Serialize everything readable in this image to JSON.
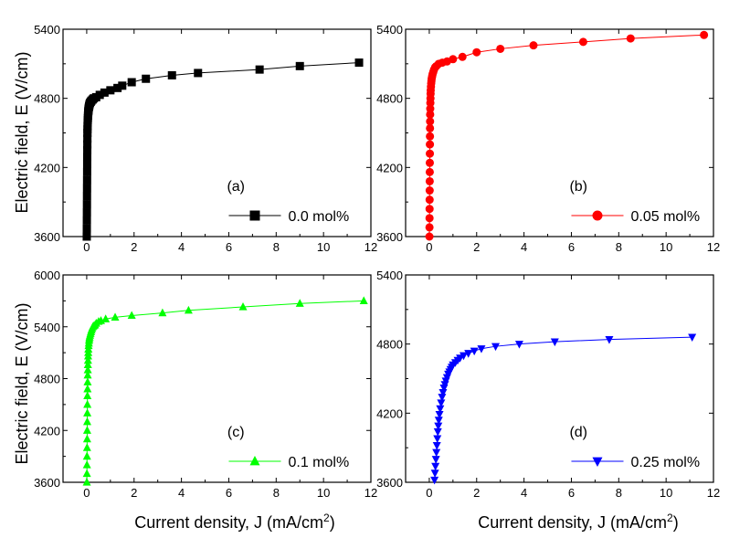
{
  "figure": {
    "ylabel": "Electric field, E (V/cm)",
    "xlabel_main": "Current density, J (mA/cm",
    "xlabel_sup": "2",
    "xlabel_end": ")"
  },
  "chart_data": [
    {
      "type": "scatter",
      "panel_label": "(a)",
      "legend": "0.0 mol%",
      "color": "#000000",
      "marker": "square",
      "xlim": [
        -1,
        12
      ],
      "ylim": [
        3600,
        5400
      ],
      "xticks": [
        0,
        2,
        4,
        6,
        8,
        10,
        12
      ],
      "yticks": [
        3600,
        4200,
        4800,
        5400
      ],
      "series": [
        {
          "name": "0.0 mol%",
          "x": [
            0.002,
            0.004,
            0.006,
            0.008,
            0.01,
            0.012,
            0.014,
            0.016,
            0.018,
            0.02,
            0.022,
            0.024,
            0.026,
            0.028,
            0.03,
            0.033,
            0.036,
            0.04,
            0.045,
            0.05,
            0.055,
            0.06,
            0.065,
            0.07,
            0.075,
            0.08,
            0.09,
            0.1,
            0.11,
            0.12,
            0.14,
            0.17,
            0.2,
            0.25,
            0.3,
            0.4,
            0.55,
            0.75,
            1.0,
            1.3,
            1.5,
            1.9,
            2.5,
            3.6,
            4.7,
            7.3,
            9.0,
            11.5
          ],
          "y": [
            3600,
            3670,
            3740,
            3810,
            3880,
            3950,
            4020,
            4090,
            4160,
            4230,
            4290,
            4350,
            4400,
            4450,
            4500,
            4530,
            4560,
            4590,
            4610,
            4630,
            4650,
            4670,
            4680,
            4690,
            4700,
            4710,
            4720,
            4730,
            4740,
            4750,
            4760,
            4770,
            4780,
            4790,
            4800,
            4810,
            4830,
            4850,
            4870,
            4890,
            4910,
            4940,
            4970,
            5000,
            5020,
            5050,
            5080,
            5110
          ]
        }
      ]
    },
    {
      "type": "scatter",
      "panel_label": "(b)",
      "legend": "0.05 mol%",
      "color": "#ff0000",
      "marker": "circle",
      "xlim": [
        -1,
        12
      ],
      "ylim": [
        3600,
        5400
      ],
      "xticks": [
        0,
        2,
        4,
        6,
        8,
        10,
        12
      ],
      "yticks": [
        3600,
        4200,
        4800,
        5400
      ],
      "series": [
        {
          "name": "0.05 mol%",
          "x": [
            0.005,
            0.008,
            0.01,
            0.012,
            0.014,
            0.016,
            0.018,
            0.02,
            0.022,
            0.024,
            0.026,
            0.028,
            0.03,
            0.033,
            0.036,
            0.04,
            0.045,
            0.05,
            0.055,
            0.06,
            0.07,
            0.08,
            0.09,
            0.1,
            0.12,
            0.14,
            0.17,
            0.2,
            0.25,
            0.3,
            0.4,
            0.55,
            0.75,
            1.0,
            1.4,
            2.0,
            3.0,
            4.4,
            6.5,
            8.5,
            11.6
          ],
          "y": [
            3600,
            3680,
            3760,
            3840,
            3920,
            4000,
            4080,
            4160,
            4240,
            4320,
            4400,
            4470,
            4540,
            4600,
            4660,
            4710,
            4760,
            4800,
            4840,
            4870,
            4900,
            4930,
            4950,
            4970,
            4990,
            5010,
            5030,
            5050,
            5070,
            5080,
            5100,
            5110,
            5120,
            5140,
            5160,
            5200,
            5230,
            5260,
            5290,
            5320,
            5350
          ]
        }
      ]
    },
    {
      "type": "scatter",
      "panel_label": "(c)",
      "legend": "0.1 mol%",
      "color": "#00ff00",
      "marker": "triangle-up",
      "xlim": [
        -1,
        12
      ],
      "ylim": [
        3600,
        6000
      ],
      "xticks": [
        0,
        2,
        4,
        6,
        8,
        10,
        12
      ],
      "yticks": [
        3600,
        4200,
        4800,
        5400,
        6000
      ],
      "series": [
        {
          "name": "0.1 mol%",
          "x": [
            0.005,
            0.008,
            0.01,
            0.012,
            0.015,
            0.018,
            0.02,
            0.022,
            0.025,
            0.028,
            0.03,
            0.034,
            0.038,
            0.042,
            0.046,
            0.05,
            0.055,
            0.06,
            0.065,
            0.07,
            0.08,
            0.09,
            0.1,
            0.11,
            0.12,
            0.14,
            0.16,
            0.18,
            0.2,
            0.23,
            0.26,
            0.3,
            0.35,
            0.4,
            0.5,
            0.6,
            0.8,
            1.2,
            1.9,
            3.2,
            4.3,
            6.6,
            9.0,
            11.7
          ],
          "y": [
            3600,
            3700,
            3800,
            3900,
            4000,
            4100,
            4200,
            4300,
            4400,
            4500,
            4600,
            4680,
            4760,
            4840,
            4900,
            4960,
            5010,
            5060,
            5100,
            5140,
            5180,
            5210,
            5240,
            5260,
            5280,
            5300,
            5320,
            5340,
            5360,
            5380,
            5400,
            5410,
            5420,
            5440,
            5460,
            5470,
            5490,
            5510,
            5530,
            5560,
            5590,
            5630,
            5670,
            5700
          ]
        }
      ]
    },
    {
      "type": "scatter",
      "panel_label": "(d)",
      "legend": "0.25 mol%",
      "color": "#0000ff",
      "marker": "triangle-down",
      "xlim": [
        -1,
        12
      ],
      "ylim": [
        3600,
        5400
      ],
      "xticks": [
        0,
        2,
        4,
        6,
        8,
        10,
        12
      ],
      "yticks": [
        3600,
        4200,
        4800,
        5400
      ],
      "series": [
        {
          "name": "0.25 mol%",
          "x": [
            0.22,
            0.24,
            0.26,
            0.28,
            0.3,
            0.32,
            0.34,
            0.36,
            0.38,
            0.4,
            0.43,
            0.46,
            0.5,
            0.54,
            0.58,
            0.62,
            0.66,
            0.7,
            0.75,
            0.8,
            0.85,
            0.9,
            0.95,
            1.0,
            1.1,
            1.2,
            1.3,
            1.45,
            1.65,
            1.9,
            2.2,
            2.8,
            3.8,
            5.3,
            7.6,
            11.1
          ],
          "y": [
            3620,
            3680,
            3740,
            3800,
            3860,
            3920,
            3980,
            4040,
            4090,
            4140,
            4190,
            4240,
            4290,
            4340,
            4380,
            4420,
            4450,
            4480,
            4510,
            4540,
            4560,
            4580,
            4600,
            4620,
            4640,
            4660,
            4680,
            4700,
            4720,
            4740,
            4760,
            4780,
            4800,
            4820,
            4840,
            4860
          ]
        }
      ]
    }
  ]
}
